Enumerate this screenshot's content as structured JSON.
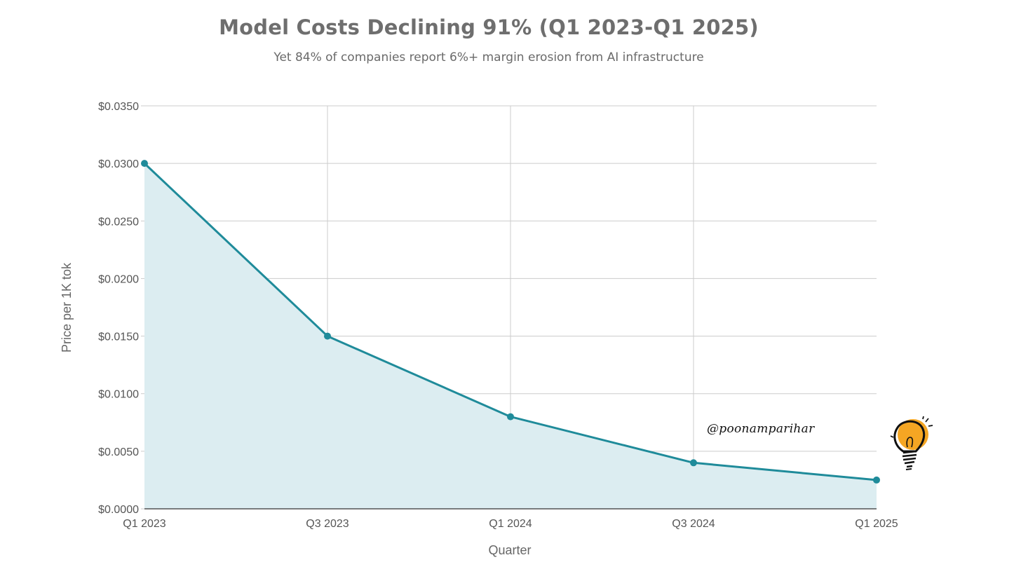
{
  "title": "Model Costs Declining 91% (Q1 2023-Q1 2025)",
  "subtitle": "Yet 84% of companies report 6%+ margin erosion from AI infrastructure",
  "watermark": "@poonamparihar",
  "icons": {
    "logo": "lightbulb-icon"
  },
  "colors": {
    "line": "#1f8b9a",
    "fill": "#dcedf1",
    "grid": "#cccccc",
    "axis": "#333333"
  },
  "chart_data": {
    "type": "area",
    "categories": [
      "Q1 2023",
      "Q3 2023",
      "Q1 2024",
      "Q3 2024",
      "Q1 2025"
    ],
    "values": [
      0.03,
      0.015,
      0.008,
      0.004,
      0.0025
    ],
    "xlabel": "Quarter",
    "ylabel": "Price per 1K tok",
    "ylim": [
      0,
      0.035
    ],
    "yticks": [
      0,
      0.005,
      0.01,
      0.015,
      0.02,
      0.025,
      0.03,
      0.035
    ],
    "ytick_labels": [
      "$0.0000",
      "$0.0050",
      "$0.0100",
      "$0.0150",
      "$0.0200",
      "$0.0250",
      "$0.0300",
      "$0.0350"
    ],
    "grid": true,
    "markers": true
  }
}
